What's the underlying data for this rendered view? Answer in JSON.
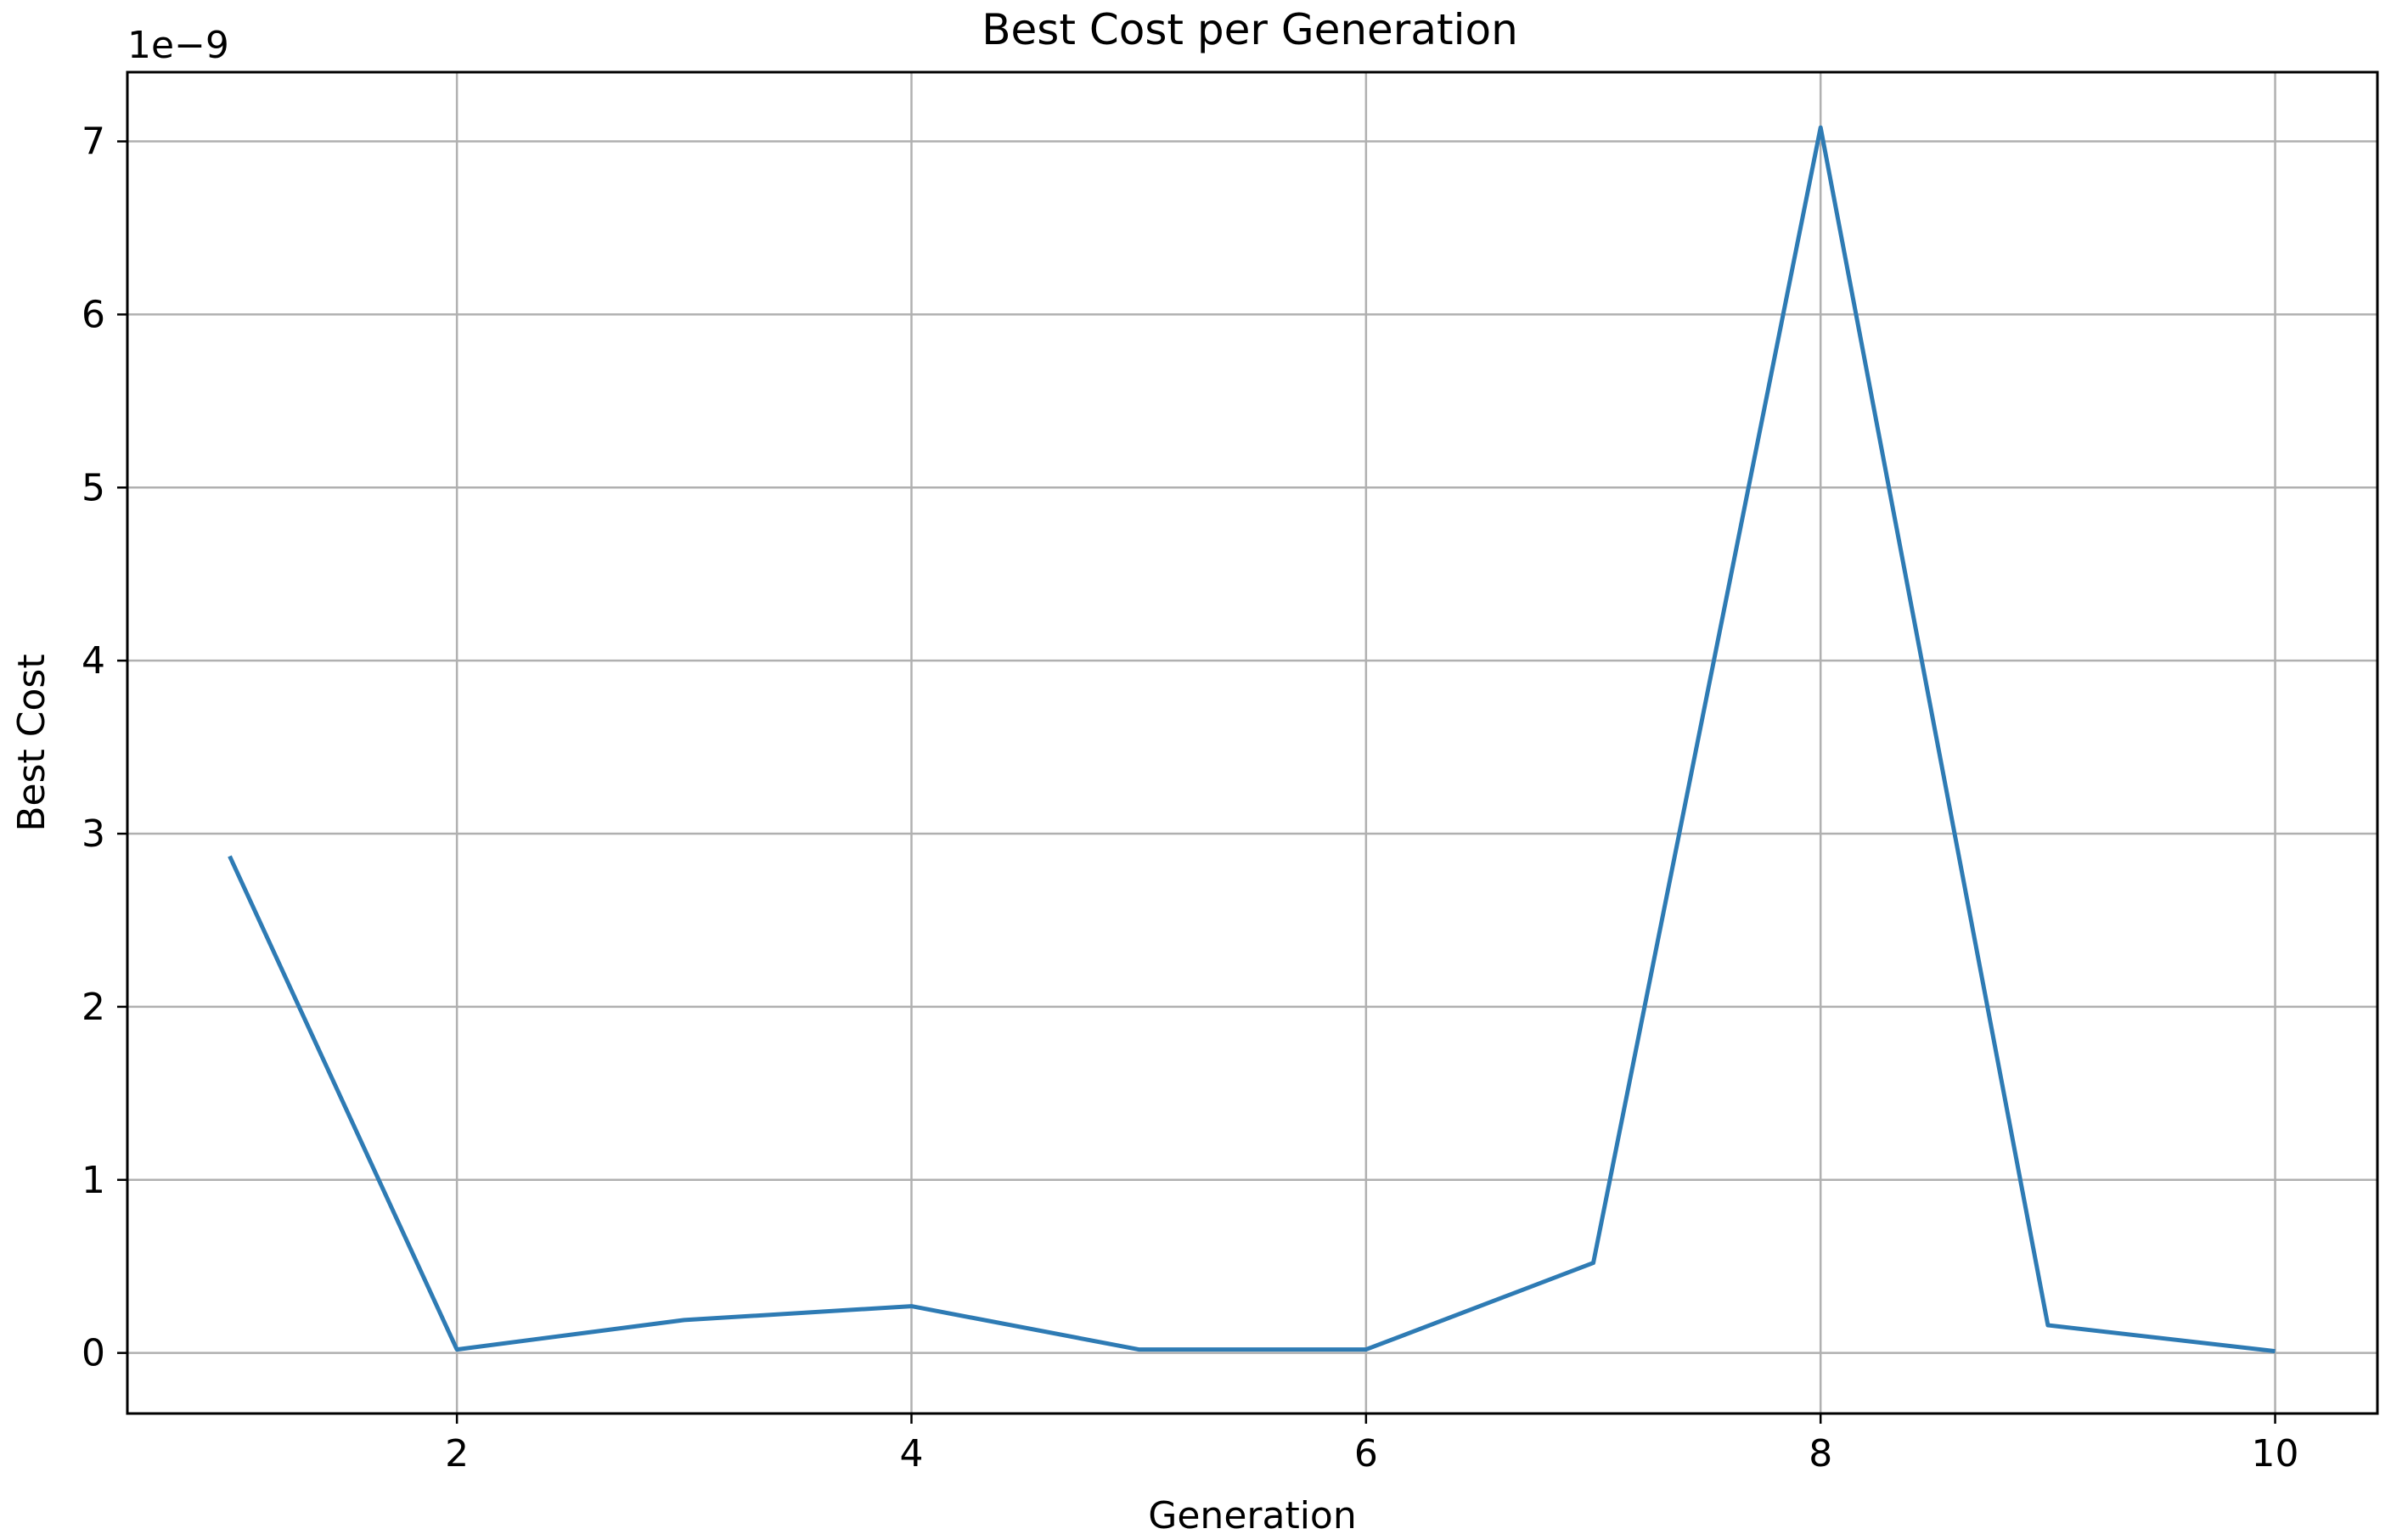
{
  "chart_data": {
    "type": "line",
    "title": "Best Cost per Generation",
    "xlabel": "Generation",
    "ylabel": "Best Cost",
    "y_scale_label": "1e−9",
    "y_multiplier": 1e-09,
    "xlim": [
      0.55,
      10.45
    ],
    "ylim": [
      -0.35,
      7.4
    ],
    "x_ticks": [
      2,
      4,
      6,
      8,
      10
    ],
    "x_tick_labels": [
      "2",
      "4",
      "6",
      "8",
      "10"
    ],
    "y_ticks": [
      0,
      1,
      2,
      3,
      4,
      5,
      6,
      7
    ],
    "y_tick_labels": [
      "0",
      "1",
      "2",
      "3",
      "4",
      "5",
      "6",
      "7"
    ],
    "grid": true,
    "line_color": "#2e7bb4",
    "grid_color": "#b0b0b0",
    "series": [
      {
        "x": [
          1,
          2,
          3,
          4,
          5,
          6,
          7,
          8,
          9,
          10
        ],
        "values": [
          2.87,
          0.02,
          0.19,
          0.27,
          0.02,
          0.02,
          0.52,
          7.08,
          0.16,
          0.01
        ]
      }
    ]
  }
}
